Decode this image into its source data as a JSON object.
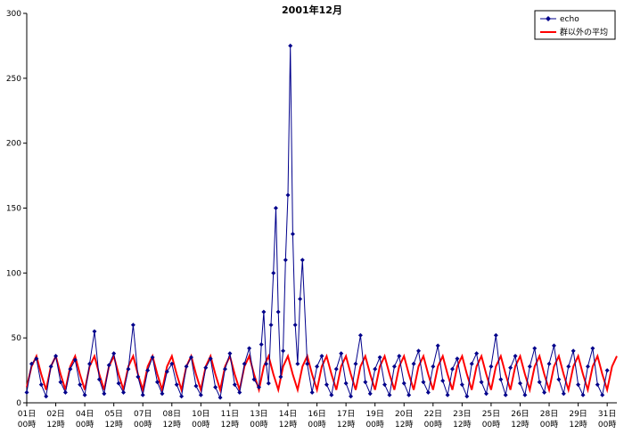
{
  "chart_data": {
    "type": "line",
    "title": "2001年12月",
    "xlabel": "",
    "ylabel": "",
    "ylim": [
      0,
      300
    ],
    "yticks": [
      0,
      50,
      100,
      150,
      200,
      250,
      300
    ],
    "grid": false,
    "legend_position": "top-right",
    "x_unit": "hour",
    "x_range_hours": [
      0,
      732
    ],
    "x_tick_labels": [
      {
        "day": "01日",
        "time": "00時"
      },
      {
        "day": "02日",
        "time": "12時"
      },
      {
        "day": "04日",
        "time": "00時"
      },
      {
        "day": "05日",
        "time": "12時"
      },
      {
        "day": "07日",
        "time": "00時"
      },
      {
        "day": "08日",
        "time": "12時"
      },
      {
        "day": "10日",
        "time": "00時"
      },
      {
        "day": "11日",
        "time": "12時"
      },
      {
        "day": "13日",
        "time": "00時"
      },
      {
        "day": "14日",
        "time": "12時"
      },
      {
        "day": "16日",
        "time": "00時"
      },
      {
        "day": "17日",
        "time": "12時"
      },
      {
        "day": "19日",
        "time": "00時"
      },
      {
        "day": "20日",
        "time": "12時"
      },
      {
        "day": "22日",
        "time": "00時"
      },
      {
        "day": "23日",
        "time": "12時"
      },
      {
        "day": "25日",
        "time": "00時"
      },
      {
        "day": "26日",
        "time": "12時"
      },
      {
        "day": "28日",
        "time": "00時"
      },
      {
        "day": "29日",
        "time": "12時"
      },
      {
        "day": "31日",
        "time": "00時"
      }
    ],
    "series": [
      {
        "name": "echo",
        "color": "#00008B",
        "marker": "diamond",
        "x": [
          0,
          6,
          12,
          18,
          24,
          30,
          36,
          42,
          48,
          54,
          60,
          66,
          72,
          78,
          84,
          90,
          96,
          102,
          108,
          114,
          120,
          126,
          132,
          138,
          144,
          150,
          156,
          162,
          168,
          174,
          180,
          186,
          192,
          198,
          204,
          210,
          216,
          222,
          228,
          234,
          240,
          246,
          252,
          258,
          264,
          270,
          276,
          282,
          288,
          291,
          294,
          297,
          300,
          303,
          306,
          309,
          312,
          315,
          318,
          321,
          324,
          327,
          330,
          333,
          336,
          339,
          342,
          348,
          354,
          360,
          366,
          372,
          378,
          384,
          390,
          396,
          402,
          408,
          414,
          420,
          426,
          432,
          438,
          444,
          450,
          456,
          462,
          468,
          474,
          480,
          486,
          492,
          498,
          504,
          510,
          516,
          522,
          528,
          534,
          540,
          546,
          552,
          558,
          564,
          570,
          576,
          582,
          588,
          594,
          600,
          606,
          612,
          618,
          624,
          630,
          636,
          642,
          648,
          654,
          660,
          666,
          672,
          678,
          684,
          690,
          696,
          702,
          708,
          714,
          720
        ],
        "y": [
          8,
          30,
          34,
          14,
          5,
          28,
          36,
          16,
          8,
          26,
          33,
          14,
          6,
          30,
          55,
          18,
          7,
          29,
          38,
          15,
          8,
          26,
          60,
          20,
          6,
          25,
          35,
          16,
          7,
          24,
          30,
          14,
          5,
          28,
          35,
          13,
          6,
          27,
          34,
          12,
          4,
          26,
          38,
          14,
          8,
          30,
          42,
          18,
          12,
          45,
          70,
          30,
          15,
          60,
          100,
          150,
          70,
          20,
          40,
          110,
          160,
          275,
          130,
          60,
          30,
          80,
          110,
          30,
          8,
          28,
          36,
          14,
          6,
          26,
          38,
          15,
          5,
          30,
          52,
          16,
          7,
          26,
          35,
          14,
          6,
          28,
          36,
          15,
          6,
          30,
          40,
          16,
          8,
          28,
          44,
          17,
          6,
          26,
          34,
          14,
          5,
          30,
          38,
          16,
          7,
          28,
          52,
          18,
          6,
          27,
          36,
          15,
          6,
          28,
          42,
          16,
          8,
          30,
          44,
          18,
          7,
          28,
          40,
          14,
          6,
          28,
          42,
          14,
          6,
          25
        ]
      },
      {
        "name": "群以外の平均",
        "color": "#FF0000",
        "marker": "none",
        "x": [
          0,
          6,
          12,
          18,
          24,
          30,
          36,
          42,
          48,
          54,
          60,
          66,
          72,
          78,
          84,
          90,
          96,
          102,
          108,
          114,
          120,
          126,
          132,
          138,
          144,
          150,
          156,
          162,
          168,
          174,
          180,
          186,
          192,
          198,
          204,
          210,
          216,
          222,
          228,
          234,
          240,
          246,
          252,
          258,
          264,
          270,
          276,
          282,
          288,
          294,
          300,
          306,
          312,
          318,
          324,
          330,
          336,
          342,
          348,
          354,
          360,
          366,
          372,
          378,
          384,
          390,
          396,
          402,
          408,
          414,
          420,
          426,
          432,
          438,
          444,
          450,
          456,
          462,
          468,
          474,
          480,
          486,
          492,
          498,
          504,
          510,
          516,
          522,
          528,
          534,
          540,
          546,
          552,
          558,
          564,
          570,
          576,
          582,
          588,
          594,
          600,
          606,
          612,
          618,
          624,
          630,
          636,
          642,
          648,
          654,
          660,
          666,
          672,
          678,
          684,
          690,
          696,
          702,
          708,
          714,
          720,
          726,
          732
        ],
        "y": [
          12,
          28,
          36,
          22,
          10,
          28,
          36,
          22,
          10,
          28,
          36,
          22,
          10,
          28,
          36,
          22,
          10,
          28,
          36,
          22,
          10,
          28,
          36,
          22,
          10,
          28,
          36,
          22,
          10,
          28,
          36,
          22,
          10,
          28,
          36,
          22,
          10,
          28,
          36,
          22,
          10,
          28,
          36,
          22,
          10,
          28,
          36,
          22,
          10,
          28,
          36,
          22,
          10,
          28,
          36,
          22,
          10,
          28,
          36,
          22,
          10,
          28,
          36,
          22,
          10,
          28,
          36,
          22,
          10,
          28,
          36,
          22,
          10,
          28,
          36,
          22,
          10,
          28,
          36,
          22,
          10,
          28,
          36,
          22,
          10,
          28,
          36,
          22,
          10,
          28,
          36,
          22,
          10,
          28,
          36,
          22,
          10,
          28,
          36,
          22,
          10,
          28,
          36,
          22,
          10,
          28,
          36,
          22,
          10,
          28,
          36,
          22,
          10,
          28,
          36,
          22,
          10,
          28,
          36,
          22,
          10,
          28,
          36
        ]
      }
    ]
  }
}
